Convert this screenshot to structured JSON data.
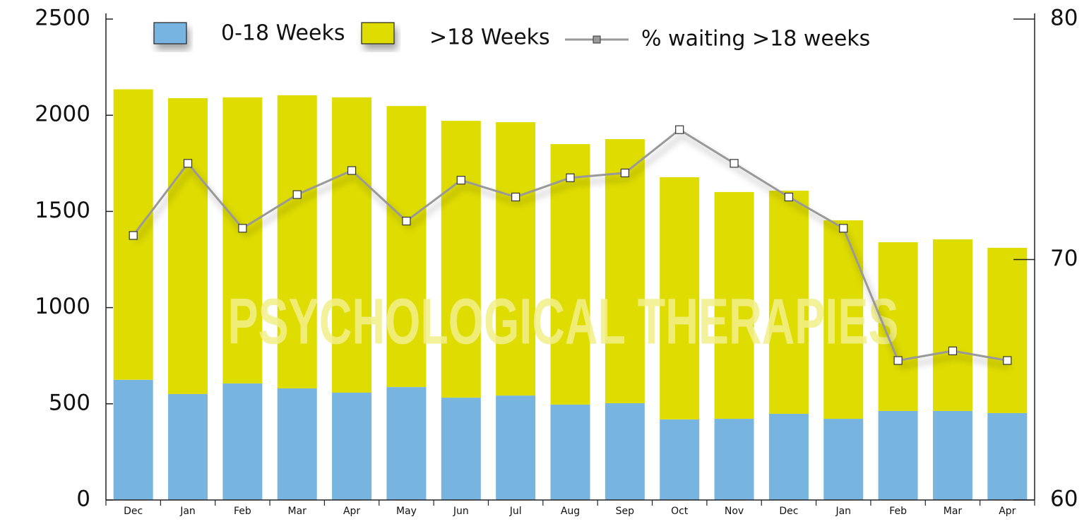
{
  "chart_data": {
    "type": "bar",
    "stacked": true,
    "watermark": "PSYCHOLOGICAL THERAPIES",
    "categories": [
      "Dec",
      "Jan",
      "Feb",
      "Mar",
      "Apr",
      "May",
      "Jun",
      "Jul",
      "Aug",
      "Sep",
      "Oct",
      "Nov",
      "Dec",
      "Jan",
      "Feb",
      "Mar",
      "Apr"
    ],
    "series": [
      {
        "name": "0-18 Weeks",
        "type": "bar",
        "color": "#77b5e0",
        "values": [
          625,
          551,
          606,
          580,
          558,
          587,
          532,
          543,
          496,
          503,
          419,
          422,
          448,
          422,
          463,
          463,
          452
        ]
      },
      {
        "name": ">18 Weeks",
        "type": "bar",
        "color": "#dedc00",
        "values": [
          1510,
          1538,
          1487,
          1524,
          1535,
          1461,
          1439,
          1421,
          1354,
          1373,
          1259,
          1179,
          1160,
          1032,
          877,
          892,
          859
        ]
      },
      {
        "name": "% waiting >18 weeks",
        "type": "line",
        "axis": "y2",
        "color": "#999999",
        "values": [
          71.0,
          74.0,
          71.3,
          72.7,
          73.7,
          71.6,
          73.3,
          72.6,
          73.4,
          73.6,
          75.4,
          74.0,
          72.6,
          71.3,
          65.8,
          66.2,
          65.8
        ]
      }
    ],
    "ylim": [
      0,
      2500
    ],
    "yticks": [
      0,
      500,
      1000,
      1500,
      2000,
      2500
    ],
    "y2lim": [
      60,
      80
    ],
    "y2ticks": [
      60,
      70,
      80
    ],
    "grid": false
  }
}
